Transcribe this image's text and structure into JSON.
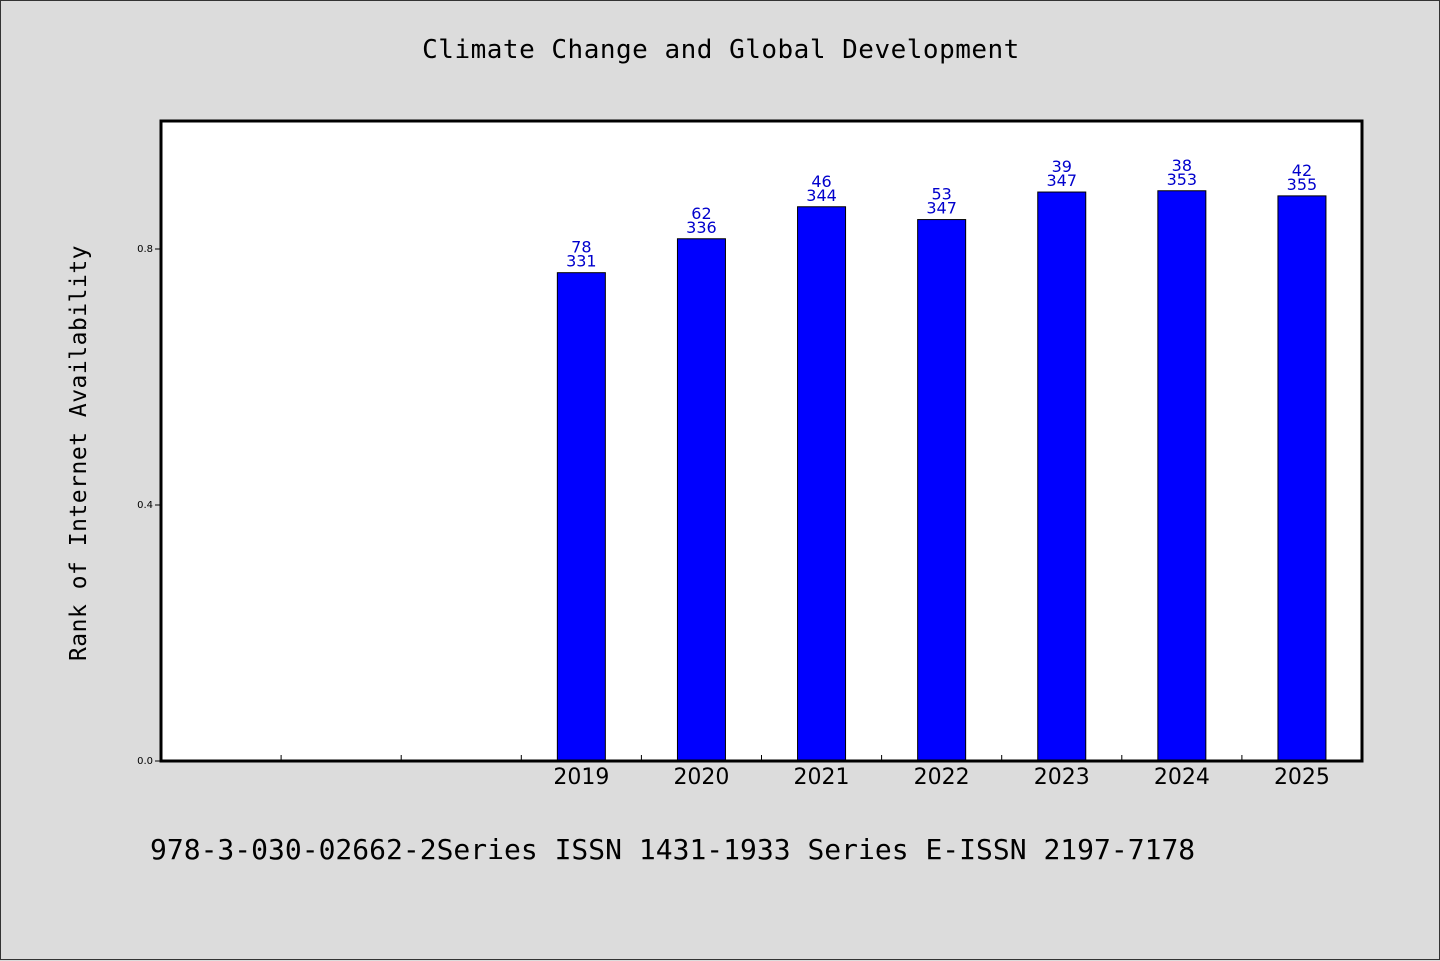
{
  "chart_data": {
    "type": "bar",
    "title": "Climate Change and Global Development",
    "ylabel": "Rank of Internet Availability",
    "xlabel": "",
    "ylim": [
      0,
      1.0
    ],
    "yticks": [
      {
        "value": 0.0,
        "label": "0.0"
      },
      {
        "value": 0.4,
        "label": "0.4"
      },
      {
        "value": 0.8,
        "label": "0.8"
      }
    ],
    "categories": [
      "",
      "",
      "",
      "2019",
      "2020",
      "2021",
      "2022",
      "2023",
      "2024",
      "2025"
    ],
    "series": [
      {
        "values": [
          null,
          null,
          null,
          0.763,
          0.816,
          0.866,
          0.846,
          0.889,
          0.891,
          0.883
        ],
        "label_top": [
          null,
          null,
          null,
          "78",
          "62",
          "46",
          "53",
          "39",
          "38",
          "42"
        ],
        "label_bottom": [
          null,
          null,
          null,
          "331",
          "336",
          "344",
          "347",
          "347",
          "353",
          "355"
        ],
        "color": "#0000ff"
      }
    ],
    "grid": false,
    "legend": "none"
  },
  "footer": {
    "text": "978-3-030-02662-2Series ISSN 1431-1933 Series E-ISSN 2197-7178"
  },
  "colors": {
    "background": "#dcdcdc",
    "plot_area": "#ffffff",
    "bar": "#0000ff",
    "bar_label": "#0000cc"
  }
}
